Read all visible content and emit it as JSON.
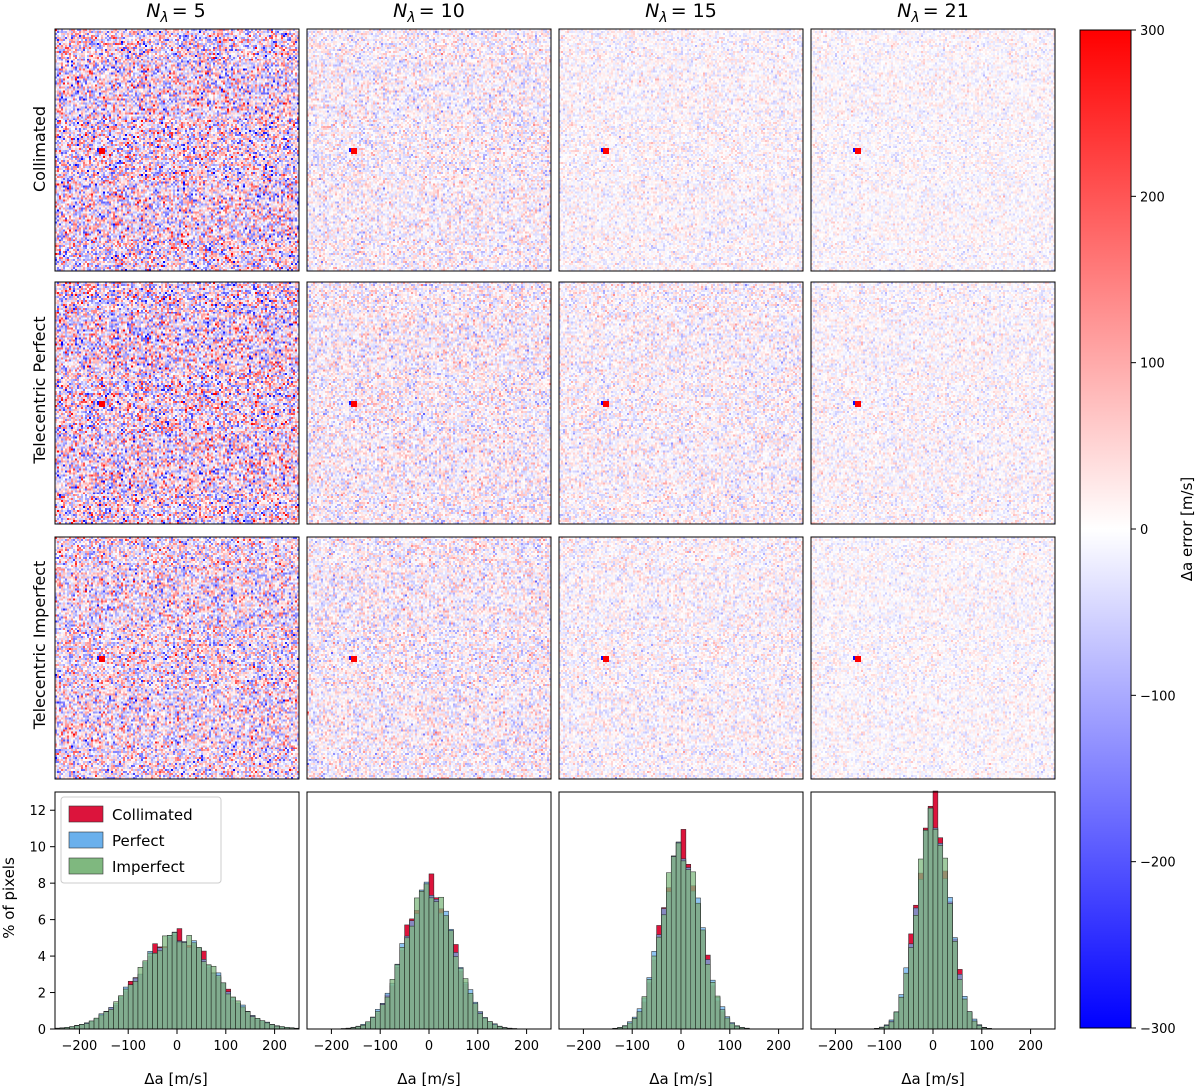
{
  "columns": [
    {
      "prefix": "N",
      "sub": "λ",
      "value": "= 5"
    },
    {
      "prefix": "N",
      "sub": "λ",
      "value": "= 10"
    },
    {
      "prefix": "N",
      "sub": "λ",
      "value": "= 15"
    },
    {
      "prefix": "N",
      "sub": "λ",
      "value": "= 21"
    }
  ],
  "rows": [
    "Collimated",
    "Telecentric Perfect",
    "Telecentric Imperfect"
  ],
  "colorbar": {
    "label": "Δa error [m/s]",
    "min": -300,
    "max": 300,
    "ticks": [
      300,
      200,
      100,
      0,
      -100,
      -200,
      -300
    ],
    "tick_labels": [
      "300",
      "200",
      "100",
      "0",
      "−100",
      "−200",
      "−300"
    ],
    "colormap": "bwr",
    "colors": {
      "low": "#0000ff",
      "mid": "#ffffff",
      "high": "#ff0000"
    }
  },
  "heatmaps": {
    "description_noise_amplitude_m_s": [
      [
        110,
        45,
        30,
        25
      ],
      [
        115,
        50,
        40,
        30
      ],
      [
        95,
        50,
        35,
        25
      ]
    ]
  },
  "chart_data": [
    {
      "type": "bar",
      "title": "",
      "xlabel": "Δa [m/s]",
      "ylabel": "% of pixels",
      "xlim": [
        -250,
        250
      ],
      "ylim": [
        0,
        13
      ],
      "xticks": [
        -200,
        -100,
        0,
        100,
        200
      ],
      "xtick_labels": [
        "−200",
        "−100",
        "0",
        "100",
        "200"
      ],
      "yticks": [
        0,
        2,
        4,
        6,
        8,
        10,
        12
      ],
      "legend": {
        "placement": "top-left",
        "entries": [
          "Collimated",
          "Perfect",
          "Imperfect"
        ]
      },
      "bin_width": 10,
      "series": [
        {
          "name": "Collimated",
          "color": "#dc143c",
          "peak": 5.1,
          "std": 78
        },
        {
          "name": "Perfect",
          "color": "#6ab0ec",
          "peak": 5.0,
          "std": 80
        },
        {
          "name": "Imperfect",
          "color": "#7fb87f",
          "peak": 5.1,
          "std": 79
        }
      ]
    },
    {
      "type": "bar",
      "xlabel": "Δa [m/s]",
      "xlim": [
        -250,
        250
      ],
      "ylim": [
        0,
        13
      ],
      "xticks": [
        -200,
        -100,
        0,
        100,
        200
      ],
      "xtick_labels": [
        "−200",
        "−100",
        "0",
        "100",
        "200"
      ],
      "bin_width": 10,
      "series": [
        {
          "name": "Collimated",
          "color": "#dc143c",
          "peak": 7.9,
          "std": 50
        },
        {
          "name": "Perfect",
          "color": "#6ab0ec",
          "peak": 7.6,
          "std": 52
        },
        {
          "name": "Imperfect",
          "color": "#7fb87f",
          "peak": 7.7,
          "std": 51
        }
      ]
    },
    {
      "type": "bar",
      "xlabel": "Δa [m/s]",
      "xlim": [
        -250,
        250
      ],
      "ylim": [
        0,
        13
      ],
      "xticks": [
        -200,
        -100,
        0,
        100,
        200
      ],
      "xtick_labels": [
        "−200",
        "−100",
        "0",
        "100",
        "200"
      ],
      "bin_width": 10,
      "series": [
        {
          "name": "Collimated",
          "color": "#dc143c",
          "peak": 10.2,
          "std": 39
        },
        {
          "name": "Perfect",
          "color": "#6ab0ec",
          "peak": 9.7,
          "std": 41
        },
        {
          "name": "Imperfect",
          "color": "#7fb87f",
          "peak": 9.9,
          "std": 40
        }
      ]
    },
    {
      "type": "bar",
      "xlabel": "Δa [m/s]",
      "xlim": [
        -250,
        250
      ],
      "ylim": [
        0,
        13
      ],
      "xticks": [
        -200,
        -100,
        0,
        100,
        200
      ],
      "xtick_labels": [
        "−200",
        "−100",
        "0",
        "100",
        "200"
      ],
      "bin_width": 10,
      "series": [
        {
          "name": "Collimated",
          "color": "#dc143c",
          "peak": 12.2,
          "std": 33
        },
        {
          "name": "Perfect",
          "color": "#6ab0ec",
          "peak": 11.5,
          "std": 34
        },
        {
          "name": "Imperfect",
          "color": "#7fb87f",
          "peak": 11.8,
          "std": 33
        }
      ]
    }
  ]
}
